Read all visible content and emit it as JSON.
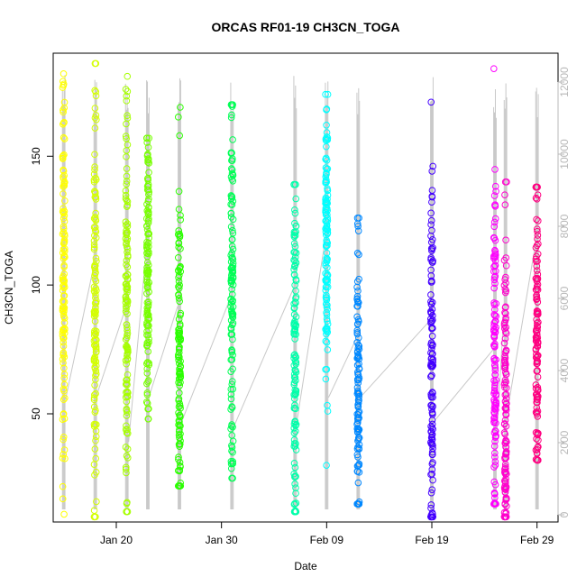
{
  "chart_data": {
    "type": "scatter",
    "title": "ORCAS RF01-19 CH3CN_TOGA",
    "xlabel": "Date",
    "ylabel": "CH3CN_TOGA",
    "x_axis": {
      "type": "date",
      "range": [
        "2016-01-14",
        "2016-03-02"
      ],
      "ticks": [
        "2016-01-20",
        "2016-01-30",
        "2016-02-09",
        "2016-02-19",
        "2016-02-29"
      ],
      "tick_labels": [
        "Jan 20",
        "Jan 30",
        "Feb 09",
        "Feb 19",
        "Feb 29"
      ]
    },
    "y_axis": {
      "range": [
        8,
        190
      ],
      "ticks": [
        50,
        100,
        150
      ],
      "tick_labels": [
        "50",
        "100",
        "150"
      ]
    },
    "y2_axis": {
      "note": "altitude trace axis",
      "range": [
        -200,
        12800
      ],
      "ticks": [
        0,
        2000,
        4000,
        6000,
        8000,
        10000,
        12000
      ],
      "tick_labels": [
        "0",
        "2000",
        "4000",
        "6000",
        "8000",
        "10000",
        "12000"
      ],
      "color": "#b8b8b8"
    },
    "grid": false,
    "legend": "none",
    "line_color": "#c8c8c8",
    "marker": "open-circle",
    "flights": [
      {
        "date": "2016-01-15",
        "color": "#ffff00",
        "min": 11,
        "max": 182,
        "center": 100,
        "spread": 38,
        "top_outliers": [
          182,
          178
        ]
      },
      {
        "date": "2016-01-18",
        "color": "#d4ff00",
        "min": 10,
        "max": 186,
        "center": 95,
        "spread": 40,
        "top_outliers": [
          186,
          175
        ]
      },
      {
        "date": "2016-01-21",
        "color": "#a6ff00",
        "min": 12,
        "max": 181,
        "center": 90,
        "spread": 40,
        "top_outliers": [
          181,
          176
        ]
      },
      {
        "date": "2016-01-23",
        "color": "#77ff00",
        "min": 48,
        "max": 157,
        "center": 100,
        "spread": 30,
        "top_outliers": [
          157
        ]
      },
      {
        "date": "2016-01-26",
        "color": "#2bff00",
        "min": 22,
        "max": 169,
        "center": 70,
        "spread": 35,
        "top_outliers": [
          169,
          158
        ]
      },
      {
        "date": "2016-01-31",
        "color": "#00ff55",
        "min": 25,
        "max": 170,
        "center": 100,
        "spread": 40,
        "top_outliers": [
          170,
          165
        ]
      },
      {
        "date": "2016-02-06",
        "color": "#00ffaa",
        "min": 12,
        "max": 139,
        "center": 75,
        "spread": 35,
        "top_outliers": [
          139
        ]
      },
      {
        "date": "2016-02-09",
        "color": "#00ffff",
        "min": 30,
        "max": 174,
        "center": 115,
        "spread": 25,
        "top_outliers": [
          174,
          145
        ]
      },
      {
        "date": "2016-02-12",
        "color": "#0088ff",
        "min": 15,
        "max": 126,
        "center": 50,
        "spread": 35,
        "top_outliers": [
          126,
          121
        ]
      },
      {
        "date": "2016-02-19",
        "color": "#4400ff",
        "min": 10,
        "max": 171,
        "center": 65,
        "spread": 35,
        "top_outliers": [
          171,
          125
        ]
      },
      {
        "date": "2016-02-25",
        "color": "#ff00ff",
        "min": 15,
        "max": 184,
        "center": 75,
        "spread": 35,
        "top_outliers": [
          184,
          131
        ]
      },
      {
        "date": "2016-02-26",
        "color": "#ff00cc",
        "min": 10,
        "max": 140,
        "center": 45,
        "spread": 35,
        "top_outliers": [
          140,
          135
        ]
      },
      {
        "date": "2016-02-29",
        "color": "#ff0080",
        "min": 32,
        "max": 138,
        "center": 80,
        "spread": 30,
        "top_outliers": [
          138,
          135
        ]
      }
    ]
  }
}
